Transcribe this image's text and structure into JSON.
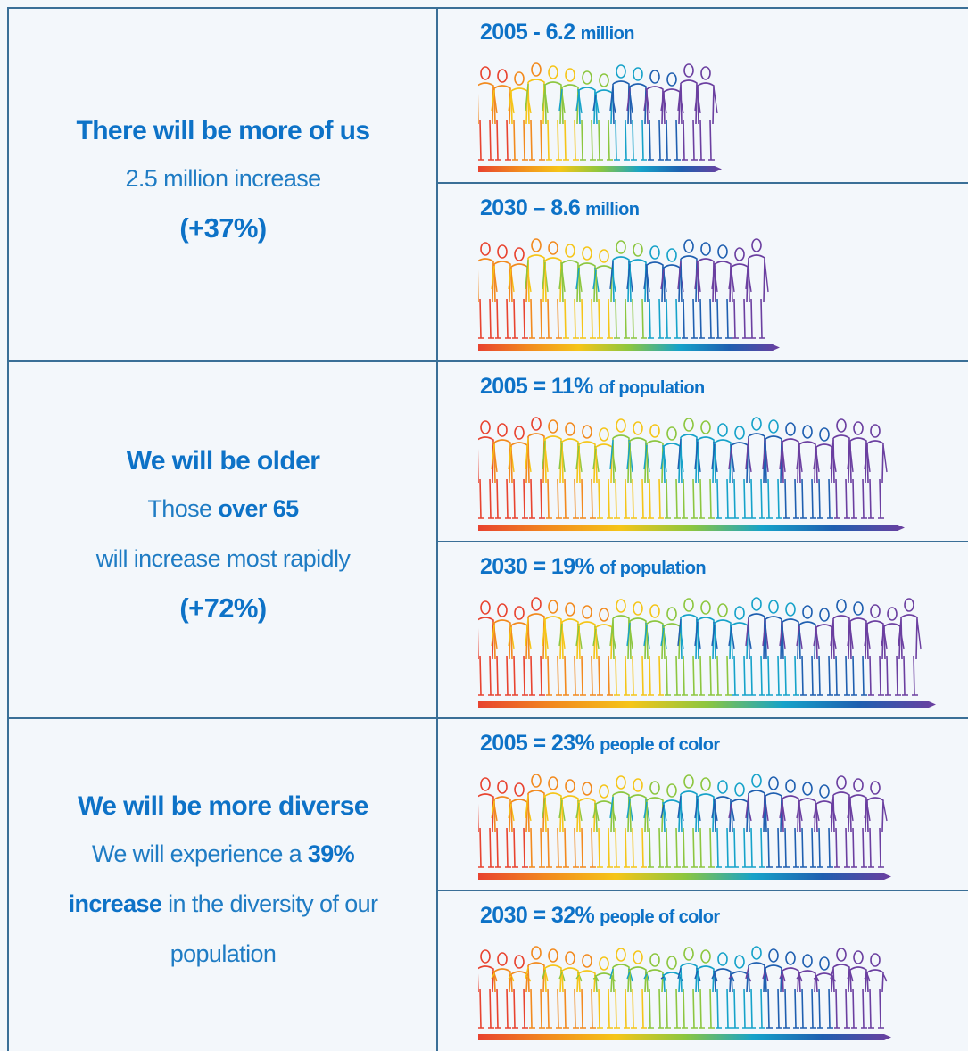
{
  "rows": [
    {
      "heading": "There will be more of us",
      "lines": [
        [
          {
            "text": "2.5 million increase"
          }
        ],
        [
          {
            "text": "(+37%)",
            "bold": true
          }
        ]
      ],
      "panels": [
        {
          "label": "2005 - 6.2",
          "unit": "million"
        },
        {
          "label": "2030 – 8.6",
          "unit": "million"
        }
      ]
    },
    {
      "heading": "We will be older",
      "lines": [
        [
          {
            "text": "Those"
          },
          {
            "text": "over 65",
            "bold": true
          }
        ],
        [
          {
            "text": "will increase most rapidly"
          }
        ],
        [
          {
            "text": "(+72%)",
            "bold": true
          }
        ]
      ],
      "panels": [
        {
          "label": "2005 = 11%",
          "unit": "of population"
        },
        {
          "label": "2030 = 19%",
          "unit": "of population"
        }
      ]
    },
    {
      "heading": "We will be more diverse",
      "lines": [
        [
          {
            "text": "We will experience a"
          },
          {
            "text": "39%",
            "bold": true
          }
        ],
        [
          {
            "text": "increase",
            "bold": true
          },
          {
            "text": "in the diversity of our"
          }
        ],
        [
          {
            "text": "population"
          }
        ]
      ],
      "panels": [
        {
          "label": "2005 = 23%",
          "unit": "people of color"
        },
        {
          "label": "2030 = 32%",
          "unit": "people of color"
        }
      ]
    }
  ]
}
